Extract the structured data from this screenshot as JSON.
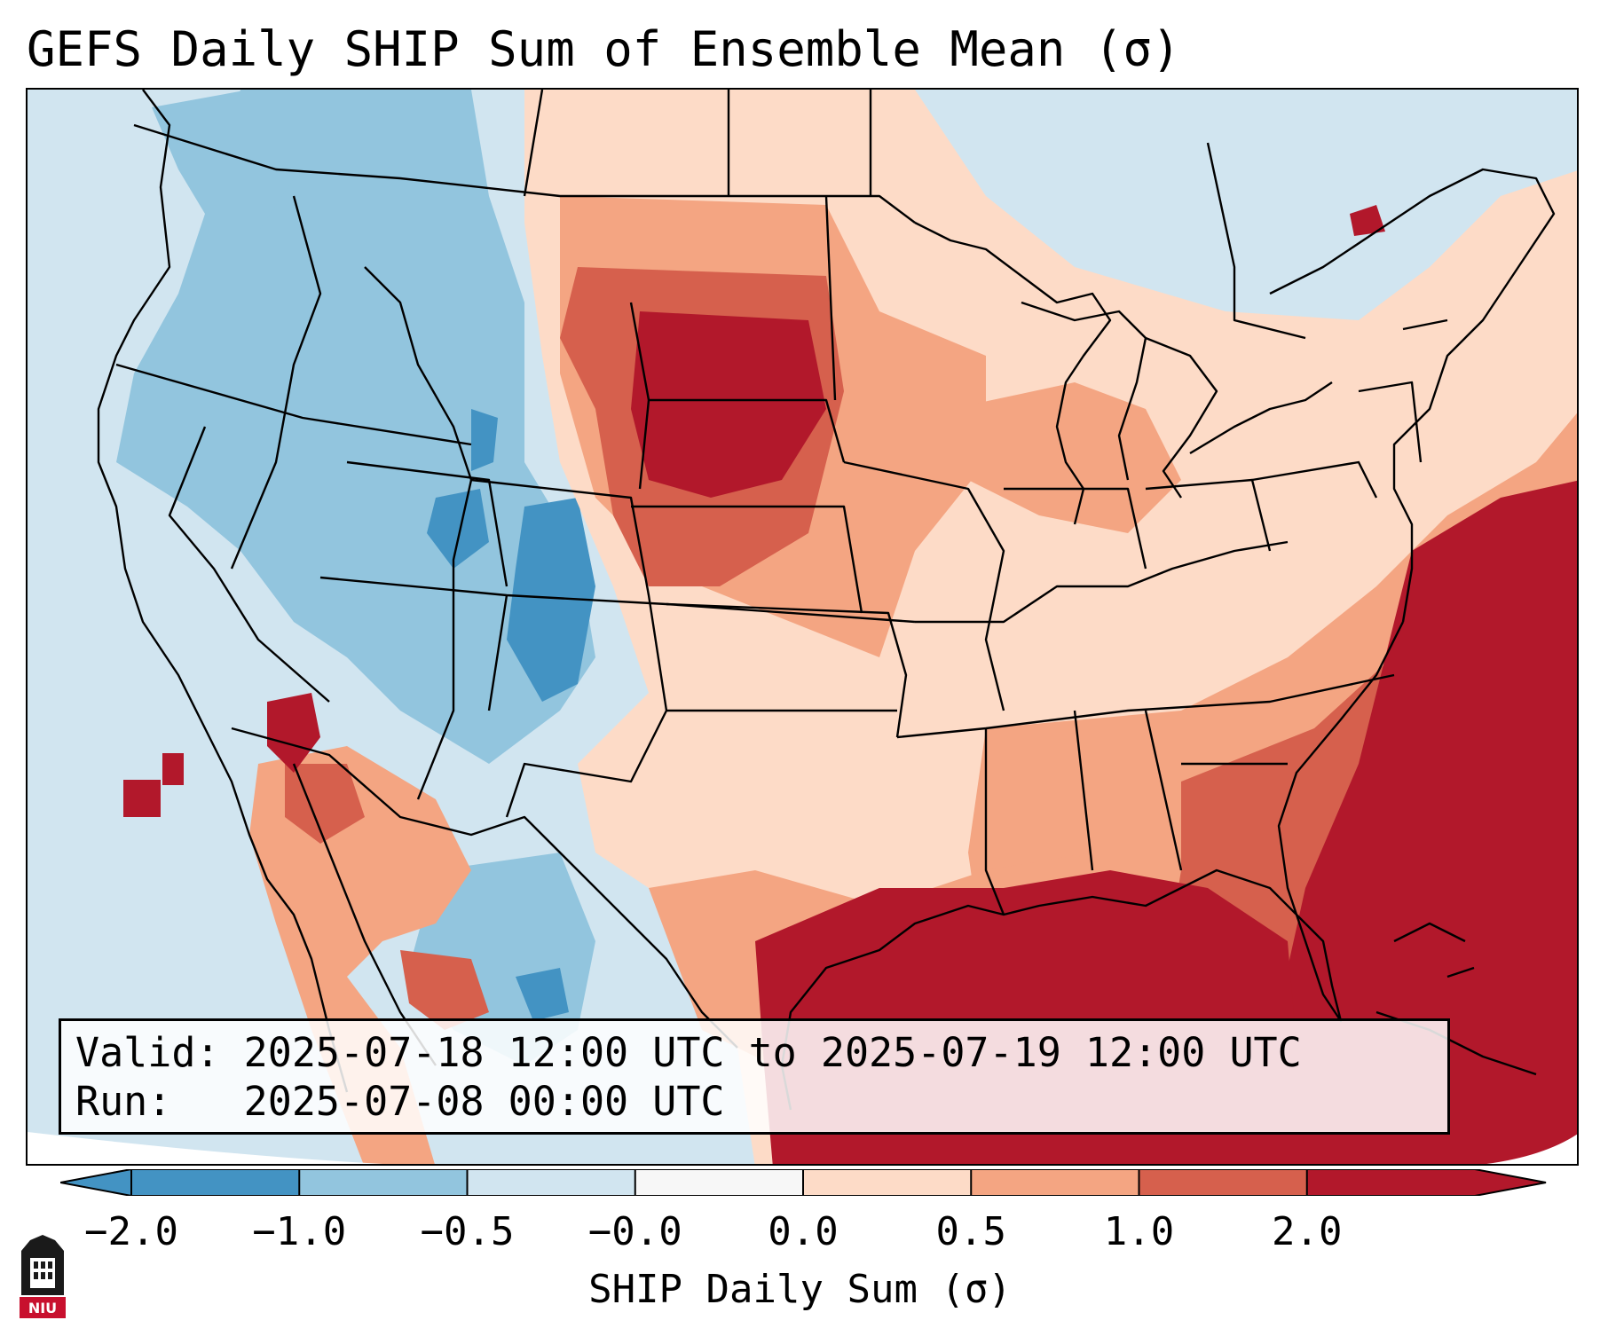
{
  "title": "GEFS Daily SHIP Sum of Ensemble Mean (σ)",
  "info": {
    "valid_label": "Valid:",
    "valid_value": "2025-07-18 12:00 UTC to 2025-07-19 12:00 UTC",
    "run_label": "Run:",
    "run_value": "2025-07-08 00:00 UTC"
  },
  "colorbar": {
    "label": "SHIP Daily Sum (σ)",
    "ticks": [
      "−2.0",
      "−1.0",
      "−0.5",
      "−0.0",
      "0.0",
      "0.5",
      "1.0",
      "2.0"
    ],
    "colors": [
      "#4393c3",
      "#92c5de",
      "#d1e5f0",
      "#f7f7f7",
      "#fddbc7",
      "#f4a582",
      "#d6604d",
      "#b2182b"
    ]
  },
  "logo": {
    "text": "NIU",
    "color": "#c8102e"
  }
}
